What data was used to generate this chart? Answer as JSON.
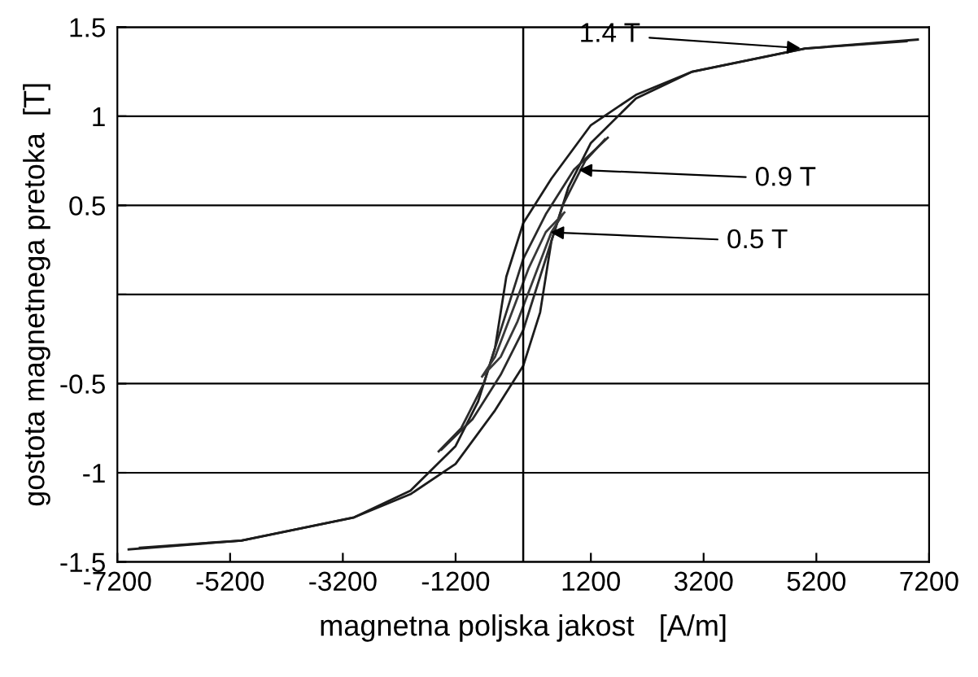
{
  "chart_data": {
    "type": "line",
    "xlabel": "magnetna poljska jakost   [A/m]",
    "ylabel": "gostota magnetnega pretoka  [T]",
    "xlim": [
      -7200,
      7200
    ],
    "xticks": [
      -7200,
      -5200,
      -3200,
      -1200,
      1200,
      3200,
      5200,
      7200
    ],
    "ylim": [
      -1.5,
      1.5
    ],
    "yticks": [
      -1.5,
      -1,
      -0.5,
      {
        "value": 0,
        "label": null
      },
      0.5,
      1,
      1.5
    ],
    "grid": "y",
    "legend": false,
    "marker": "none",
    "line_style": "solid",
    "series": [
      {
        "color": "#1c1c1c",
        "x": [
          -7000,
          -5000,
          -3000,
          -2000,
          -1200,
          -800,
          -500,
          -300,
          0,
          500,
          1200,
          2000,
          3000,
          5000,
          7000
        ],
        "values": [
          -1.43,
          -1.38,
          -1.25,
          -1.1,
          -0.85,
          -0.6,
          -0.3,
          0.1,
          0.4,
          0.65,
          0.95,
          1.12,
          1.25,
          1.38,
          1.43
        ]
      },
      {
        "color": "#1c1c1c",
        "x": [
          -6800,
          -5000,
          -3000,
          -2000,
          -1200,
          -500,
          0,
          300,
          500,
          800,
          1200,
          2000,
          3000,
          5000,
          6800
        ],
        "values": [
          -1.42,
          -1.38,
          -1.25,
          -1.12,
          -0.95,
          -0.65,
          -0.4,
          -0.1,
          0.3,
          0.6,
          0.85,
          1.1,
          1.25,
          1.38,
          1.42
        ]
      },
      {
        "color": "#2a2a2a",
        "x": [
          -1500,
          -1100,
          -700,
          -300,
          0,
          400,
          900,
          1500
        ],
        "values": [
          -0.88,
          -0.75,
          -0.5,
          -0.1,
          0.2,
          0.45,
          0.7,
          0.88
        ]
      },
      {
        "color": "#2a2a2a",
        "x": [
          -1450,
          -900,
          -400,
          0,
          300,
          700,
          1100,
          1450
        ],
        "values": [
          -0.87,
          -0.7,
          -0.45,
          -0.2,
          0.1,
          0.5,
          0.75,
          0.87
        ]
      },
      {
        "color": "#383838",
        "x": [
          -730,
          -500,
          -200,
          100,
          400,
          730
        ],
        "values": [
          -0.46,
          -0.35,
          -0.1,
          0.15,
          0.35,
          0.46
        ]
      },
      {
        "color": "#383838",
        "x": [
          -700,
          -400,
          -100,
          200,
          500,
          700
        ],
        "values": [
          -0.45,
          -0.35,
          -0.15,
          0.1,
          0.35,
          0.45
        ]
      }
    ],
    "ref_lines": [
      {
        "axis": "x",
        "value": 0,
        "color": "#000000"
      }
    ],
    "annotations": [
      {
        "text": "1.4 T",
        "x": 5000,
        "y": 1.38
      },
      {
        "text": "0.9 T",
        "x": 900,
        "y": 0.7
      },
      {
        "text": "0.5 T",
        "x": 400,
        "y": 0.35
      }
    ]
  }
}
